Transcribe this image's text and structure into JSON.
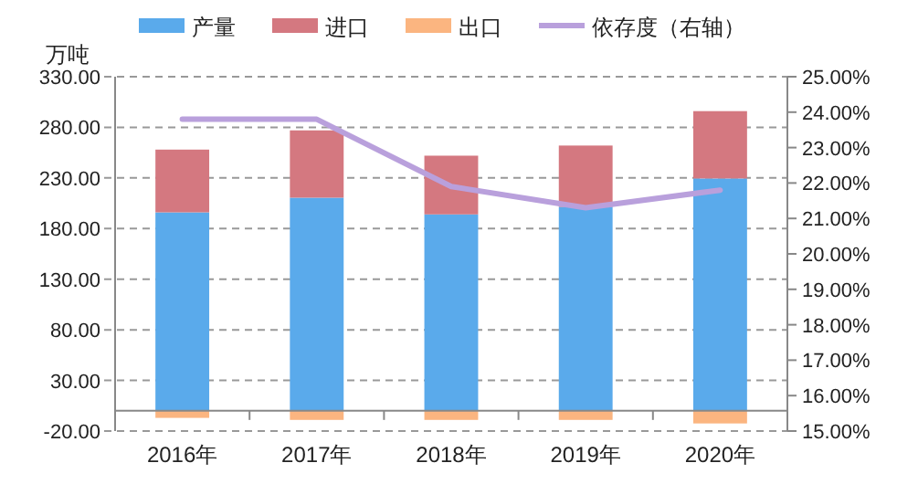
{
  "chart_data": {
    "type": "bar",
    "stacked": true,
    "ylabel": "万吨",
    "categories": [
      "2016年",
      "2017年",
      "2018年",
      "2019年",
      "2020年"
    ],
    "series": [
      {
        "name": "产量",
        "color": "#5aaaeb",
        "values": [
          196,
          210.5,
          194,
          201.5,
          229.5
        ]
      },
      {
        "name": "进口",
        "color": "#d47880",
        "values": [
          62,
          66.5,
          58,
          60.5,
          66.5
        ]
      },
      {
        "name": "出口",
        "color": "#fbb580",
        "values": [
          -7,
          -9,
          -9,
          -9,
          -12.5
        ]
      },
      {
        "name": "依存度（右轴）",
        "type": "line",
        "axis": "y2",
        "color": "#b9a0dc",
        "values": [
          23.8,
          23.8,
          21.9,
          21.3,
          21.8
        ]
      }
    ],
    "ylim": [
      -20,
      330
    ],
    "yticks": [
      {
        "value": -20,
        "label": "-20.00"
      },
      {
        "value": 30,
        "label": "30.00"
      },
      {
        "value": 80,
        "label": "80.00"
      },
      {
        "value": 130,
        "label": "130.00"
      },
      {
        "value": 180,
        "label": "180.00"
      },
      {
        "value": 230,
        "label": "230.00"
      },
      {
        "value": 280,
        "label": "280.00"
      },
      {
        "value": 330,
        "label": "330.00"
      }
    ],
    "y2lim": [
      15,
      25
    ],
    "y2ticks": [
      {
        "value": 15,
        "label": "15.00%"
      },
      {
        "value": 16,
        "label": "16.00%"
      },
      {
        "value": 17,
        "label": "17.00%"
      },
      {
        "value": 18,
        "label": "18.00%"
      },
      {
        "value": 19,
        "label": "19.00%"
      },
      {
        "value": 20,
        "label": "20.00%"
      },
      {
        "value": 21,
        "label": "21.00%"
      },
      {
        "value": 22,
        "label": "22.00%"
      },
      {
        "value": 23,
        "label": "23.00%"
      },
      {
        "value": 24,
        "label": "24.00%"
      },
      {
        "value": 25,
        "label": "25.00%"
      }
    ],
    "grid": "y",
    "legend": "top"
  }
}
